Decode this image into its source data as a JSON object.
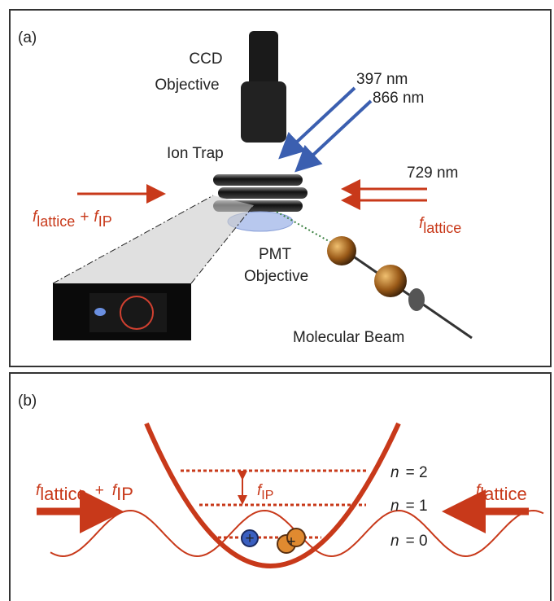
{
  "panel_a": {
    "label": "(a)",
    "ccd": [
      "CCD",
      "Objective"
    ],
    "lasers_blue": [
      "397 nm",
      "866 nm"
    ],
    "ion_trap": "Ion Trap",
    "laser_red": "729 nm",
    "left_freq": {
      "f1": "f",
      "sub1": "lattice",
      "plus": "+",
      "f2": "f",
      "sub2": "IP"
    },
    "right_freq": {
      "f": "f",
      "sub": "lattice"
    },
    "pmt": [
      "PMT",
      "Objective"
    ],
    "molecular_beam": "Molecular Beam"
  },
  "panel_b": {
    "label": "(b)",
    "left_freq": {
      "f1": "f",
      "sub1": "lattice",
      "plus": "+",
      "f2": "f",
      "sub2": "IP"
    },
    "right_freq": {
      "f": "f",
      "sub": "lattice"
    },
    "spacing": {
      "f": "f",
      "sub": "IP"
    },
    "levels": [
      {
        "n": "n",
        "eq": "= 2"
      },
      {
        "n": "n",
        "eq": "= 1"
      },
      {
        "n": "n",
        "eq": "= 0"
      }
    ],
    "ion_charge": [
      "+",
      "+"
    ]
  }
}
